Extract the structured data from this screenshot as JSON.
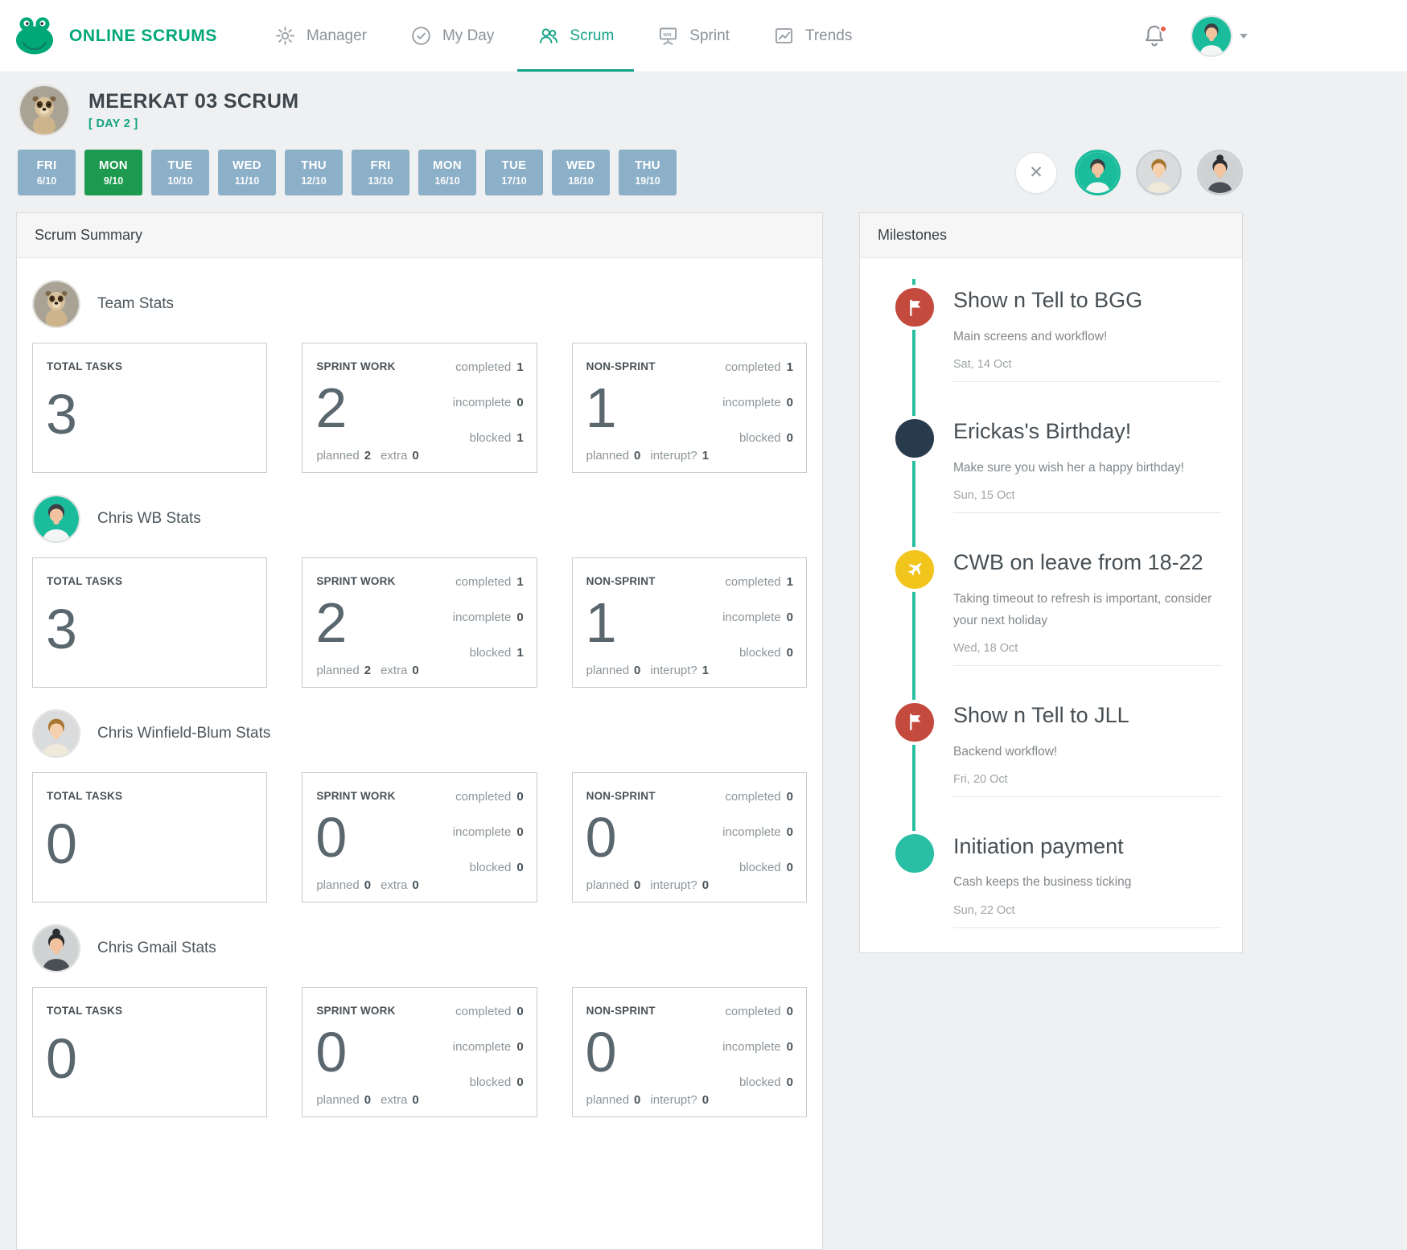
{
  "brand": {
    "name": "ONLINE SCRUMS"
  },
  "nav": {
    "items": [
      {
        "label": "Manager",
        "icon": "gear-icon",
        "active": false
      },
      {
        "label": "My Day",
        "icon": "check-circle-icon",
        "active": false
      },
      {
        "label": "Scrum",
        "icon": "people-icon",
        "active": true
      },
      {
        "label": "Sprint",
        "icon": "sprint-board-icon",
        "active": false
      },
      {
        "label": "Trends",
        "icon": "trends-chart-icon",
        "active": false
      }
    ]
  },
  "user": {
    "avatar": "chris_wb"
  },
  "header": {
    "title": "MEERKAT 03 SCRUM",
    "day_label": "[ DAY 2 ]",
    "avatar": "meerkat"
  },
  "dates": [
    {
      "day": "FRI",
      "date": "6/10",
      "active": false
    },
    {
      "day": "MON",
      "date": "9/10",
      "active": true
    },
    {
      "day": "TUE",
      "date": "10/10",
      "active": false
    },
    {
      "day": "WED",
      "date": "11/10",
      "active": false
    },
    {
      "day": "THU",
      "date": "12/10",
      "active": false
    },
    {
      "day": "FRI",
      "date": "13/10",
      "active": false
    },
    {
      "day": "MON",
      "date": "16/10",
      "active": false
    },
    {
      "day": "TUE",
      "date": "17/10",
      "active": false
    },
    {
      "day": "WED",
      "date": "18/10",
      "active": false
    },
    {
      "day": "THU",
      "date": "19/10",
      "active": false
    }
  ],
  "team_bar": {
    "close_label": "✕",
    "avatars": [
      {
        "person": "chris_wb",
        "active": true
      },
      {
        "person": "chris_winfield_blum",
        "active": false
      },
      {
        "person": "chris_gmail",
        "active": false
      }
    ]
  },
  "labels": {
    "total_tasks": "TOTAL TASKS",
    "sprint_work": "SPRINT WORK",
    "non_sprint": "NON-SPRINT",
    "completed": "completed",
    "incomplete": "incomplete",
    "blocked": "blocked",
    "planned": "planned",
    "extra": "extra",
    "interupt": "interupt?"
  },
  "scrum_summary": {
    "title": "Scrum Summary",
    "sections": [
      {
        "name": "Team Stats",
        "avatar": "meerkat",
        "status": "none",
        "total": "3",
        "sprint": {
          "value": "2",
          "completed": "1",
          "incomplete": "0",
          "blocked": "1",
          "planned": "2",
          "extra": "0"
        },
        "non_sprint": {
          "value": "1",
          "completed": "1",
          "incomplete": "0",
          "blocked": "0",
          "planned": "0",
          "interupt": "1"
        }
      },
      {
        "name": "Chris WB Stats",
        "avatar": "chris_wb",
        "status": "done",
        "total": "3",
        "sprint": {
          "value": "2",
          "completed": "1",
          "incomplete": "0",
          "blocked": "1",
          "planned": "2",
          "extra": "0"
        },
        "non_sprint": {
          "value": "1",
          "completed": "1",
          "incomplete": "0",
          "blocked": "0",
          "planned": "0",
          "interupt": "1"
        }
      },
      {
        "name": "Chris Winfield-Blum Stats",
        "avatar": "chris_winfield_blum",
        "status": "missed",
        "total": "0",
        "sprint": {
          "value": "0",
          "completed": "0",
          "incomplete": "0",
          "blocked": "0",
          "planned": "0",
          "extra": "0"
        },
        "non_sprint": {
          "value": "0",
          "completed": "0",
          "incomplete": "0",
          "blocked": "0",
          "planned": "0",
          "interupt": "0"
        }
      },
      {
        "name": "Chris Gmail Stats",
        "avatar": "chris_gmail",
        "status": "missed",
        "total": "0",
        "sprint": {
          "value": "0",
          "completed": "0",
          "incomplete": "0",
          "blocked": "0",
          "planned": "0",
          "extra": "0"
        },
        "non_sprint": {
          "value": "0",
          "completed": "0",
          "incomplete": "0",
          "blocked": "0",
          "planned": "0",
          "interupt": "0"
        }
      }
    ]
  },
  "milestones": {
    "title": "Milestones",
    "items": [
      {
        "icon": "flag-icon",
        "color": "#c44a3e",
        "title": "Show n Tell to BGG",
        "description": "Main screens and workflow!",
        "date": "Sat, 14 Oct"
      },
      {
        "icon": "gift-icon",
        "color": "#283b4d",
        "title": "Erickas's Birthday!",
        "description": "Make sure you wish her a happy birthday!",
        "date": "Sun, 15 Oct"
      },
      {
        "icon": "plane-icon",
        "color": "#f2c51d",
        "title": "CWB on leave from 18-22",
        "description": "Taking timeout to refresh is important, consider your next holiday",
        "date": "Wed, 18 Oct"
      },
      {
        "icon": "flag-icon",
        "color": "#c44a3e",
        "title": "Show n Tell to JLL",
        "description": "Backend workflow!",
        "date": "Fri, 20 Oct"
      },
      {
        "icon": "piggy-bank-icon",
        "color": "#29bfa4",
        "title": "Initiation payment",
        "description": "Cash keeps the business ticking",
        "date": "Sun, 22 Oct"
      }
    ]
  },
  "colors": {
    "brand_green": "#00a878",
    "accent_teal": "#13a287",
    "active_day_green": "#1e9a50",
    "day_tab_blue": "#8db0c9",
    "timeline_green": "#2bbfa0",
    "alert_red": "#e0503f",
    "success_green": "#2f9e44"
  },
  "avatars": {
    "meerkat": {
      "kind": "meerkat"
    },
    "chris_wb": {
      "kind": "person",
      "bg": "#1abc9c",
      "hair": "#3a3f44",
      "skin": "#f3c29e",
      "shirt": "#f4f6f6",
      "bun": false
    },
    "chris_winfield_blum": {
      "kind": "person",
      "bg": "#d9dbdc",
      "hair": "#a8762f",
      "skin": "#f6cfae",
      "shirt": "#efe9da",
      "bun": false
    },
    "chris_gmail": {
      "kind": "person",
      "bg": "#cfd2d3",
      "hair": "#2c2d31",
      "skin": "#f3c29e",
      "shirt": "#4a4e55",
      "bun": true
    }
  }
}
